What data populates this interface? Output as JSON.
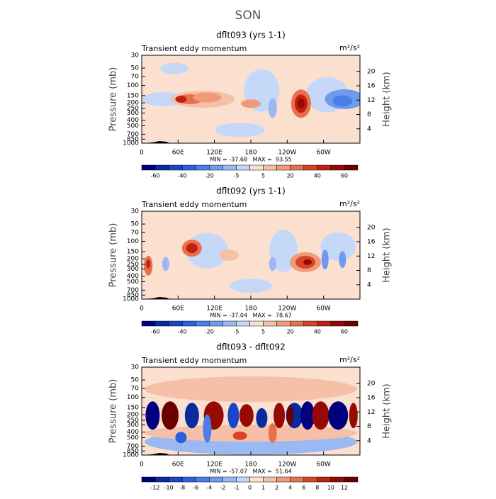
{
  "title": "SON",
  "chart_data": [
    {
      "type": "contour",
      "title": "dflt093 (yrs 1-1)",
      "subtitle": "Transient eddy momentum",
      "units": "m²/s²",
      "ylabel": "Pressure (mb)",
      "y2label": "Height (km)",
      "stats": "MIN = -37.68   MAX =  93.55",
      "xlim": [
        0,
        360
      ],
      "xticks": [
        0,
        {
          "value": 60,
          "label": "60E"
        },
        {
          "value": 120,
          "label": "120E"
        },
        180,
        {
          "value": 240,
          "label": "120W"
        },
        {
          "value": 300,
          "label": "60W"
        }
      ],
      "ylim": [
        1000,
        30
      ],
      "log_y": true,
      "yticks": [
        30,
        50,
        70,
        100,
        150,
        200,
        250,
        300,
        400,
        500,
        700,
        850,
        1000
      ],
      "y2lim": [
        0,
        24.5
      ],
      "y2ticks": [
        4,
        8,
        12,
        16,
        20
      ],
      "levels": [
        -60,
        -50,
        -40,
        -30,
        -20,
        -10,
        -5,
        0,
        5,
        10,
        20,
        30,
        40,
        50,
        60
      ],
      "level_labels": [
        "-60",
        null,
        "-40",
        null,
        "-20",
        null,
        "-5",
        null,
        "5",
        null,
        "20",
        null,
        "40",
        null,
        "60"
      ],
      "colors": [
        "#00007f",
        "#0a2aa0",
        "#1a45c8",
        "#2d5fe0",
        "#4a7fe8",
        "#6f9bee",
        "#9ab8f2",
        "#c6d8f8",
        "#fbe0d0",
        "#f6c0a8",
        "#f09a7a",
        "#e8704c",
        "#d84424",
        "#c02010",
        "#960a04",
        "#6a0000"
      ]
    },
    {
      "type": "contour",
      "title": "dflt092 (yrs 1-1)",
      "subtitle": "Transient eddy momentum",
      "units": "m²/s²",
      "ylabel": "Pressure (mb)",
      "y2label": "Height (km)",
      "stats": "MIN = -37.04   MAX =  78.67",
      "xlim": [
        0,
        360
      ],
      "xticks": [
        0,
        {
          "value": 60,
          "label": "60E"
        },
        {
          "value": 120,
          "label": "120E"
        },
        180,
        {
          "value": 240,
          "label": "120W"
        },
        {
          "value": 300,
          "label": "60W"
        }
      ],
      "ylim": [
        1000,
        30
      ],
      "log_y": true,
      "yticks": [
        30,
        50,
        70,
        100,
        150,
        200,
        250,
        300,
        400,
        500,
        700,
        850,
        1000
      ],
      "y2lim": [
        0,
        24.5
      ],
      "y2ticks": [
        4,
        8,
        12,
        16,
        20
      ],
      "levels": [
        -60,
        -50,
        -40,
        -30,
        -20,
        -10,
        -5,
        0,
        5,
        10,
        20,
        30,
        40,
        50,
        60
      ],
      "level_labels": [
        "-60",
        null,
        "-40",
        null,
        "-20",
        null,
        "-5",
        null,
        "5",
        null,
        "20",
        null,
        "40",
        null,
        "60"
      ],
      "colors": [
        "#00007f",
        "#0a2aa0",
        "#1a45c8",
        "#2d5fe0",
        "#4a7fe8",
        "#6f9bee",
        "#9ab8f2",
        "#c6d8f8",
        "#fbe0d0",
        "#f6c0a8",
        "#f09a7a",
        "#e8704c",
        "#d84424",
        "#c02010",
        "#960a04",
        "#6a0000"
      ]
    },
    {
      "type": "contour",
      "title": "dflt093 - dflt092",
      "subtitle": "Transient eddy momentum",
      "units": "m²/s²",
      "ylabel": "Pressure (mb)",
      "y2label": "Height (km)",
      "stats": "MIN = -57.07   MAX =  51.64",
      "xlim": [
        0,
        360
      ],
      "xticks": [
        0,
        {
          "value": 60,
          "label": "60E"
        },
        {
          "value": 120,
          "label": "120E"
        },
        180,
        {
          "value": 240,
          "label": "120W"
        },
        {
          "value": 300,
          "label": "60W"
        }
      ],
      "ylim": [
        1000,
        30
      ],
      "log_y": true,
      "yticks": [
        30,
        50,
        70,
        100,
        150,
        200,
        250,
        300,
        400,
        500,
        700,
        850,
        1000
      ],
      "y2lim": [
        0,
        24.5
      ],
      "y2ticks": [
        4,
        8,
        12,
        16,
        20
      ],
      "levels": [
        -12,
        -10,
        -8,
        -6,
        -4,
        -2,
        -1,
        0,
        1,
        2,
        4,
        6,
        8,
        10,
        12
      ],
      "colors": [
        "#00007f",
        "#0a2aa0",
        "#1a45c8",
        "#2d5fe0",
        "#4a7fe8",
        "#6f9bee",
        "#9ab8f2",
        "#c6d8f8",
        "#fbe0d0",
        "#f6c0a8",
        "#f09a7a",
        "#e8704c",
        "#d84424",
        "#c02010",
        "#960a04",
        "#6a0000"
      ]
    }
  ]
}
